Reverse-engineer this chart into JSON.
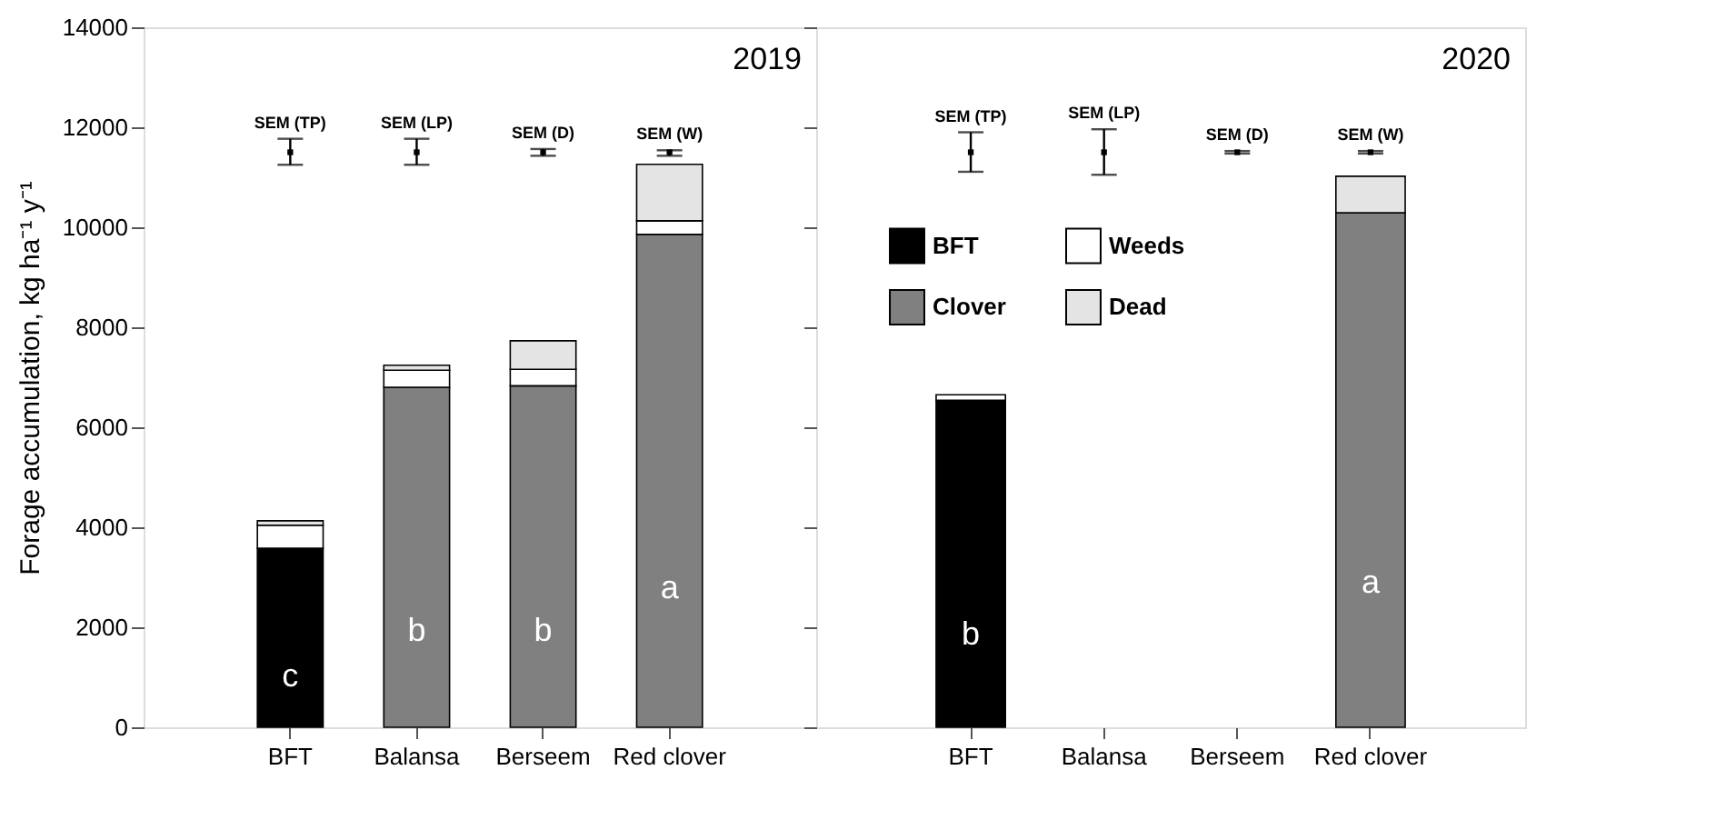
{
  "chart_data": [
    {
      "type": "bar",
      "stacked": true,
      "ylabel": "Forage accumulation, kg ha⁻¹ y⁻¹",
      "categories": [
        "BFT",
        "Balansa",
        "Berseem",
        "Red clover"
      ],
      "ylim": [
        0,
        14000
      ],
      "yticks": [
        0,
        2000,
        4000,
        6000,
        8000,
        10000,
        12000,
        14000
      ],
      "series": [
        {
          "name": "BFT",
          "color": "#000000",
          "values": [
            3580,
            null,
            null,
            null
          ],
          "value_labels": [
            "c",
            null,
            null,
            null
          ]
        },
        {
          "name": "Clover",
          "color": "#808080",
          "values": [
            null,
            6800,
            6830,
            9860
          ],
          "value_labels": [
            null,
            "b",
            "b",
            "a"
          ]
        },
        {
          "name": "Weeds",
          "color": "#ffffff",
          "values": [
            460,
            340,
            330,
            270
          ]
        },
        {
          "name": "Dead",
          "color": "#e4e4e4",
          "values": [
            90,
            100,
            570,
            1130
          ]
        },
        {
          "type": "scatter",
          "marker": "square",
          "color": "#000000",
          "values": [
            11500,
            11500,
            11500,
            11500
          ],
          "errors": [
            [
              11250,
              11770
            ],
            [
              11250,
              11770
            ],
            [
              11430,
              11565
            ],
            [
              11430,
              11540
            ]
          ],
          "value_labels": [
            "SEM (TP)",
            "SEM (LP)",
            "SEM (D)",
            "SEM (W)"
          ]
        }
      ],
      "annotations": [
        "2019"
      ],
      "legend": "right"
    },
    {
      "type": "bar",
      "stacked": true,
      "categories": [
        "BFT",
        "Balansa",
        "Berseem",
        "Red clover"
      ],
      "ylim": [
        0,
        14000
      ],
      "yticks": [
        0,
        2000,
        4000,
        6000,
        8000,
        10000,
        12000,
        14000
      ],
      "tick_labels": "x",
      "series": [
        {
          "color": "#000000",
          "values": [
            6540,
            null,
            null,
            null
          ],
          "value_labels": [
            "b",
            null,
            null,
            null
          ]
        },
        {
          "color": "#808080",
          "values": [
            null,
            null,
            null,
            10290
          ],
          "value_labels": [
            null,
            null,
            null,
            "a"
          ]
        },
        {
          "color": "#ffffff",
          "values": [
            110,
            null,
            null,
            null
          ]
        },
        {
          "color": "#e4e4e4",
          "values": [
            null,
            null,
            null,
            730
          ]
        },
        {
          "type": "scatter",
          "marker": "square",
          "color": "#000000",
          "values": [
            11500,
            11500,
            11500,
            11500
          ],
          "errors": [
            [
              11110,
              11900
            ],
            [
              11050,
              11960
            ],
            [
              11475,
              11525
            ],
            [
              11475,
              11525
            ]
          ],
          "value_labels": [
            "SEM (TP)",
            "SEM (LP)",
            "SEM (D)",
            "SEM (W)"
          ]
        }
      ],
      "annotations": [
        "2020"
      ]
    }
  ]
}
